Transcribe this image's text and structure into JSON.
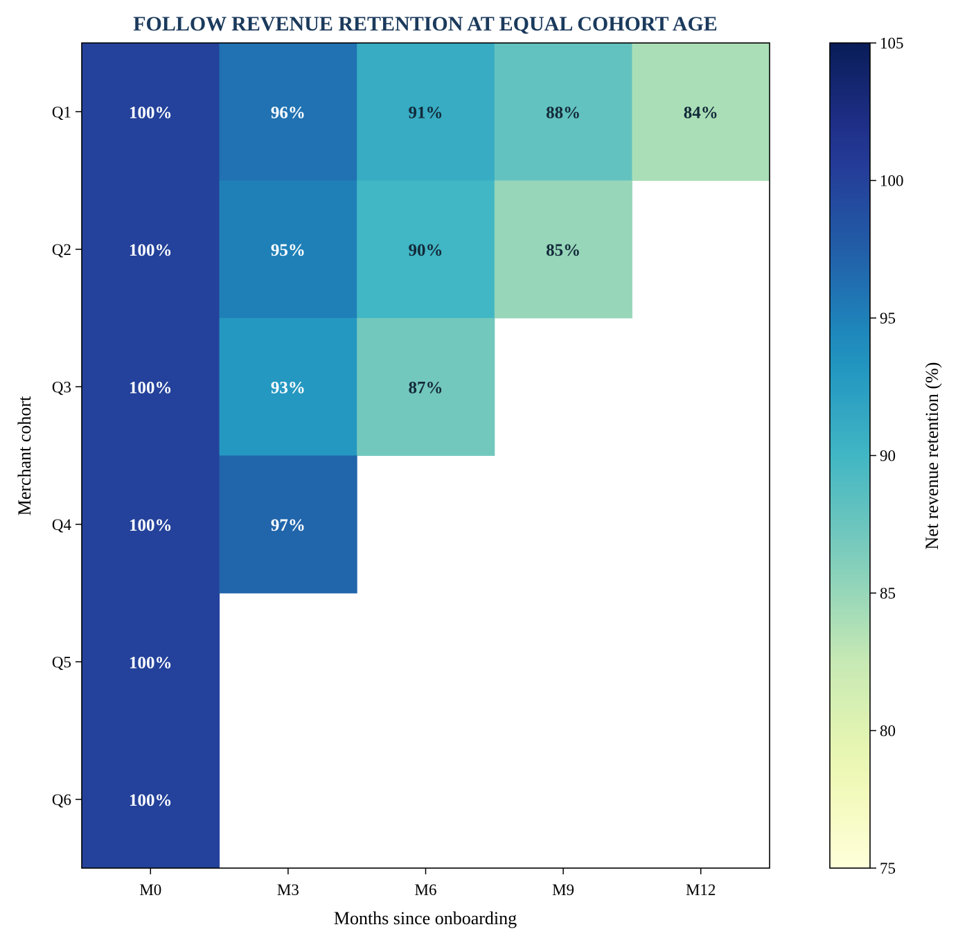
{
  "chart_data": {
    "type": "heatmap",
    "title": "FOLLOW REVENUE RETENTION AT EQUAL COHORT AGE",
    "xlabel": "Months since onboarding",
    "ylabel": "Merchant cohort",
    "x_categories": [
      "M0",
      "M3",
      "M6",
      "M9",
      "M12"
    ],
    "y_categories": [
      "Q1",
      "Q2",
      "Q3",
      "Q4",
      "Q5",
      "Q6"
    ],
    "values": [
      [
        100,
        96,
        91,
        88,
        84
      ],
      [
        100,
        95,
        90,
        85,
        null
      ],
      [
        100,
        93,
        87,
        null,
        null
      ],
      [
        100,
        97,
        null,
        null,
        null
      ],
      [
        100,
        null,
        null,
        null,
        null
      ],
      [
        100,
        null,
        null,
        null,
        null
      ]
    ],
    "cell_labels": [
      [
        "100%",
        "96%",
        "91%",
        "88%",
        "84%"
      ],
      [
        "100%",
        "95%",
        "90%",
        "85%",
        null
      ],
      [
        "100%",
        "93%",
        "87%",
        null,
        null
      ],
      [
        "100%",
        "97%",
        null,
        null,
        null
      ],
      [
        "100%",
        null,
        null,
        null,
        null
      ],
      [
        "100%",
        null,
        null,
        null,
        null
      ]
    ],
    "colorbar": {
      "label": "Net revenue retention (%)",
      "range": [
        75,
        105
      ],
      "ticks": [
        "75",
        "80",
        "85",
        "90",
        "95",
        "100",
        "105"
      ],
      "colormap": "YlGnBu"
    },
    "colors": {
      "title": "#1b3a5c",
      "label_light": "#ffffff",
      "label_dark": "#132a3a"
    }
  }
}
